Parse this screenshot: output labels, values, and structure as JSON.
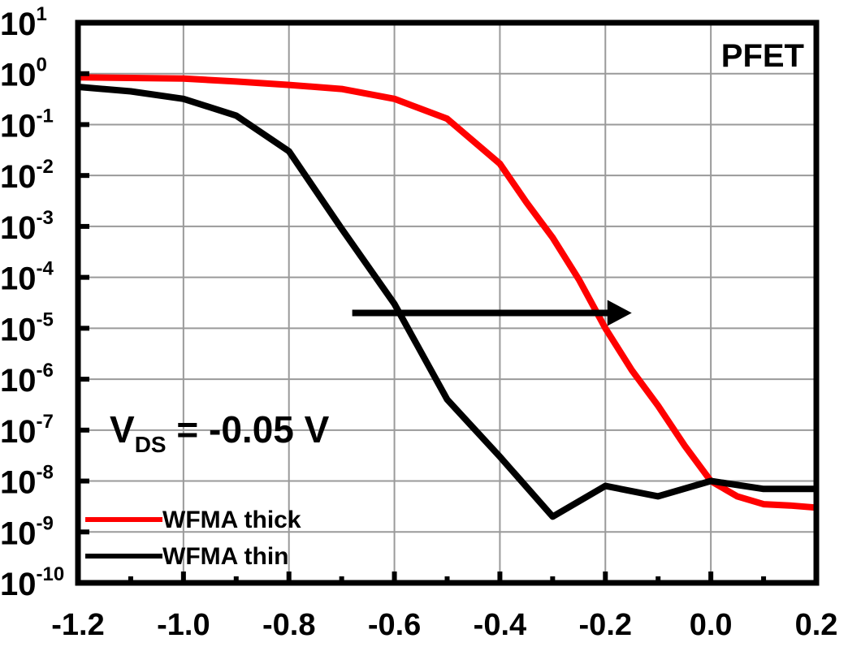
{
  "chart_data": {
    "type": "line",
    "title": "",
    "xlabel": "",
    "ylabel": "",
    "xlim": [
      -1.2,
      0.2
    ],
    "ylim_exponent": [
      -10,
      1
    ],
    "y_scale": "log",
    "grid": true,
    "x_ticks": [
      "-1.2",
      "-1.0",
      "-0.8",
      "-0.6",
      "-0.4",
      "-0.2",
      "0.0",
      "0.2"
    ],
    "x_tick_values": [
      -1.2,
      -1.0,
      -0.8,
      -0.6,
      -0.4,
      -0.2,
      0.0,
      0.2
    ],
    "y_tick_exponents": [
      "1",
      "0",
      "-1",
      "-2",
      "-3",
      "-4",
      "-5",
      "-6",
      "-7",
      "-8",
      "-9",
      "-10"
    ],
    "y_tick_base": "10",
    "annotations": {
      "device": "PFET",
      "vds_main": "V",
      "vds_sub": "DS",
      "vds_value": " = -0.05 V"
    },
    "arrow": {
      "from_x": -0.68,
      "to_x": -0.15,
      "y": 2e-05
    },
    "legend_placement": "bottom-left",
    "series": [
      {
        "name": "WFMA thick",
        "color": "#ff0000",
        "x": [
          -1.2,
          -1.0,
          -0.9,
          -0.8,
          -0.7,
          -0.6,
          -0.5,
          -0.4,
          -0.35,
          -0.3,
          -0.25,
          -0.2,
          -0.15,
          -0.1,
          -0.05,
          0.0,
          0.05,
          0.1,
          0.15,
          0.2
        ],
        "y": [
          0.85,
          0.8,
          0.7,
          0.6,
          0.5,
          0.32,
          0.13,
          0.017,
          0.003,
          0.0006,
          9e-05,
          1e-05,
          1.5e-06,
          3e-07,
          5e-08,
          1e-08,
          5e-09,
          3.5e-09,
          3.3e-09,
          3e-09
        ]
      },
      {
        "name": "WFMA thin",
        "color": "#000000",
        "x": [
          -1.2,
          -1.1,
          -1.0,
          -0.9,
          -0.8,
          -0.7,
          -0.6,
          -0.5,
          -0.4,
          -0.3,
          -0.2,
          -0.1,
          0.0,
          0.1,
          0.2
        ],
        "y": [
          0.55,
          0.45,
          0.32,
          0.15,
          0.03,
          0.0009,
          3e-05,
          4e-07,
          3e-08,
          2e-09,
          8e-09,
          5e-09,
          1e-08,
          7e-09,
          7e-09
        ]
      }
    ]
  }
}
